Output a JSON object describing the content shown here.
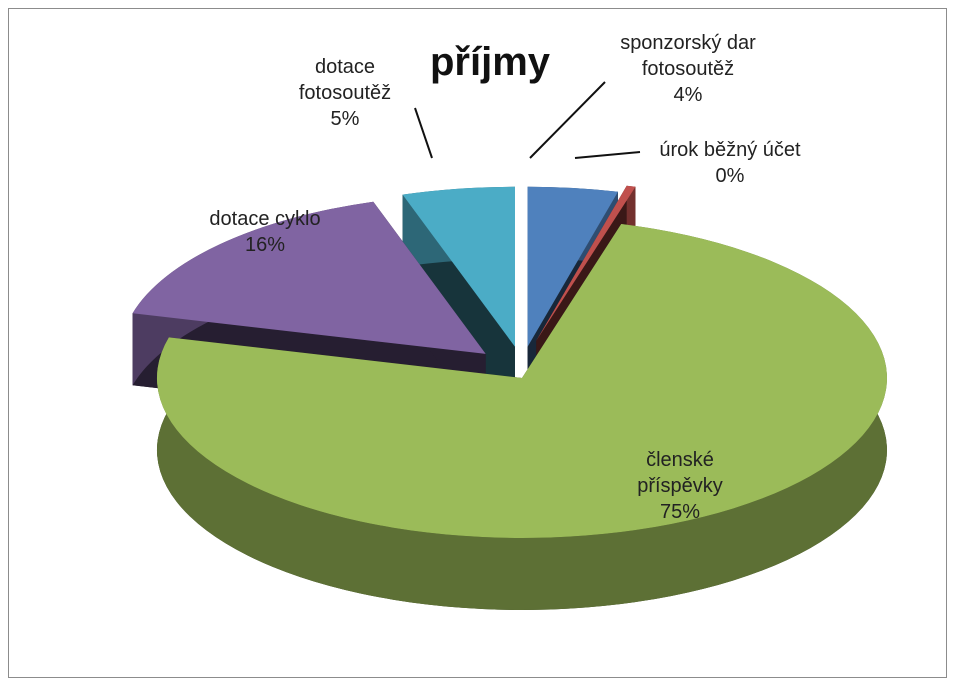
{
  "chart_data": {
    "type": "pie3d",
    "title": "příjmy",
    "categories": [
      "sponzorský dar fotosoutěž",
      "úrok běžný účet",
      "členské příspěvky",
      "dotace cyklo",
      "dotace fotosoutěž"
    ],
    "values": [
      4,
      0.4,
      75,
      16,
      5
    ],
    "value_labels": [
      "4%",
      "0%",
      "75%",
      "16%",
      "5%"
    ],
    "colors": [
      "#4f81bd",
      "#c0504d",
      "#9bbb59",
      "#8064a2",
      "#4bacc6"
    ]
  }
}
